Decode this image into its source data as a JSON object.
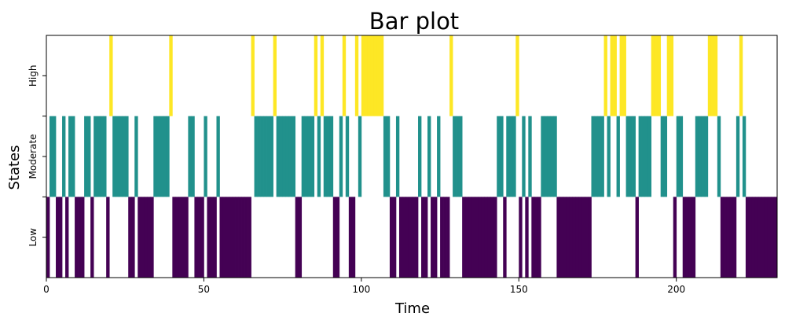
{
  "chart_data": {
    "type": "bar",
    "title": "Bar plot",
    "xlabel": "Time",
    "ylabel": "States",
    "xlim": [
      0,
      232
    ],
    "x_ticks": [
      0,
      50,
      100,
      150,
      200
    ],
    "states": [
      "Low",
      "Moderate",
      "High"
    ],
    "legend": "none",
    "grid": false,
    "colors": {
      "Low": "#440154",
      "Moderate": "#21918c",
      "High": "#fde725"
    },
    "sequence": [
      0,
      1,
      1,
      0,
      0,
      1,
      0,
      1,
      1,
      0,
      0,
      0,
      1,
      1,
      0,
      1,
      1,
      1,
      1,
      0,
      2,
      1,
      1,
      1,
      1,
      1,
      0,
      0,
      1,
      0,
      0,
      0,
      0,
      0,
      1,
      1,
      1,
      1,
      1,
      2,
      0,
      0,
      0,
      0,
      0,
      1,
      1,
      0,
      0,
      0,
      1,
      0,
      0,
      0,
      1,
      0,
      0,
      0,
      0,
      0,
      0,
      0,
      0,
      0,
      0,
      2,
      1,
      1,
      1,
      1,
      1,
      1,
      2,
      1,
      1,
      1,
      1,
      1,
      1,
      0,
      0,
      1,
      1,
      1,
      1,
      2,
      1,
      2,
      1,
      1,
      1,
      0,
      0,
      1,
      2,
      1,
      0,
      0,
      2,
      1,
      2,
      2,
      2,
      2,
      2,
      2,
      2,
      1,
      1,
      0,
      0,
      1,
      0,
      0,
      0,
      0,
      0,
      0,
      1,
      0,
      0,
      1,
      0,
      0,
      1,
      0,
      0,
      0,
      2,
      1,
      1,
      1,
      0,
      0,
      0,
      0,
      0,
      0,
      0,
      0,
      0,
      0,
      0,
      1,
      1,
      0,
      1,
      1,
      1,
      2,
      0,
      1,
      0,
      1,
      0,
      0,
      0,
      1,
      1,
      1,
      1,
      1,
      0,
      0,
      0,
      0,
      0,
      0,
      0,
      0,
      0,
      0,
      0,
      1,
      1,
      1,
      1,
      2,
      1,
      2,
      2,
      1,
      2,
      2,
      1,
      1,
      1,
      0,
      1,
      1,
      1,
      1,
      2,
      2,
      2,
      1,
      1,
      2,
      2,
      0,
      1,
      1,
      0,
      0,
      0,
      0,
      1,
      1,
      1,
      1,
      2,
      2,
      2,
      1,
      0,
      0,
      0,
      0,
      0,
      1,
      2,
      1,
      0,
      0,
      0,
      0,
      0,
      0,
      0,
      0,
      0,
      0,
      0,
      0,
      0,
      0
    ]
  }
}
